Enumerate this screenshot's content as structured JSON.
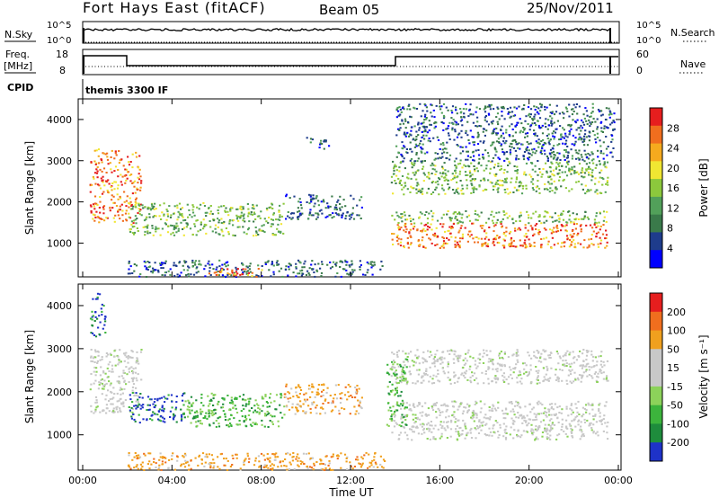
{
  "header": {
    "station": "Fort Hays East (fitACF)",
    "beam": "Beam 05",
    "date": "25/Nov/2011"
  },
  "status_panels": {
    "nsky_label": "N.Sky",
    "nsky_ticks": [
      "10^5",
      "10^0"
    ],
    "nsearch_label": "N.Search",
    "nsearch_ticks": [
      "10^5",
      "10^0"
    ],
    "freq_label": "Freq.",
    "freq_unit": "[MHz]",
    "freq_ticks": [
      "18",
      "8"
    ],
    "nave_label": "Nave",
    "nave_ticks": [
      "60",
      "0"
    ],
    "cpid_label": "CPID",
    "cpid_value": "themis 3300 IF"
  },
  "chart_data": [
    {
      "type": "heatmap",
      "name": "power",
      "ylabel": "Slant Range [km]",
      "ylim": [
        180,
        4500
      ],
      "y_ticks": [
        "4000",
        "3000",
        "2000",
        "1000"
      ],
      "xlim": [
        "00:00",
        "24:00"
      ],
      "colorbar_label": "Power [dB]",
      "colorbar_ticks": [
        "28",
        "24",
        "20",
        "16",
        "12",
        "8",
        "4"
      ],
      "colorbar_colors": [
        "#0000ff",
        "#1e3c8c",
        "#3a7a4a",
        "#52a05a",
        "#8cc83c",
        "#f0e632",
        "#f5aa1e",
        "#f06e1e",
        "#e61e1e"
      ],
      "echo_regions": [
        {
          "t0": 0.3,
          "t1": 2.6,
          "r0": 1500,
          "r1": 3300,
          "level": "high"
        },
        {
          "t0": 2.0,
          "t1": 9.0,
          "r0": 1200,
          "r1": 2000,
          "level": "mid"
        },
        {
          "t0": 9.0,
          "t1": 12.5,
          "r0": 1600,
          "r1": 2200,
          "level": "low"
        },
        {
          "t0": 10.0,
          "t1": 11.0,
          "r0": 3300,
          "r1": 3600,
          "level": "low"
        },
        {
          "t0": 2.0,
          "t1": 13.5,
          "r0": 200,
          "r1": 600,
          "level": "low"
        },
        {
          "t0": 5.5,
          "t1": 8.0,
          "r0": 200,
          "r1": 420,
          "level": "high"
        },
        {
          "t0": 13.8,
          "t1": 23.5,
          "r0": 900,
          "r1": 1500,
          "level": "high"
        },
        {
          "t0": 13.8,
          "t1": 23.5,
          "r0": 1500,
          "r1": 1800,
          "level": "mid"
        },
        {
          "t0": 13.8,
          "t1": 23.5,
          "r0": 2200,
          "r1": 3000,
          "level": "mid"
        },
        {
          "t0": 14.0,
          "t1": 23.8,
          "r0": 3000,
          "r1": 4400,
          "level": "low"
        }
      ]
    },
    {
      "type": "heatmap",
      "name": "velocity",
      "ylabel": "Slant Range [km]",
      "ylim": [
        180,
        4500
      ],
      "y_ticks": [
        "4000",
        "3000",
        "2000",
        "1000"
      ],
      "xlim": [
        "00:00",
        "24:00"
      ],
      "x_ticks": [
        "00:00",
        "04:00",
        "08:00",
        "12:00",
        "16:00",
        "20:00",
        "00:00"
      ],
      "xlabel": "Time UT",
      "colorbar_label": "Velocity [m s⁻¹]",
      "colorbar_ticks": [
        "200",
        "100",
        "50",
        "15",
        "-15",
        "-50",
        "-100",
        "-200"
      ],
      "colorbar_colors": [
        "#1e32c8",
        "#1e8c3c",
        "#3cb43c",
        "#8cd25a",
        "#c8c8c8",
        "#c8c8c8",
        "#f0a01e",
        "#f06e1e",
        "#e61e1e"
      ],
      "echo_regions": [
        {
          "t0": 0.3,
          "t1": 2.6,
          "r0": 1500,
          "r1": 3000,
          "level": "grey"
        },
        {
          "t0": 0.3,
          "t1": 1.0,
          "r0": 3300,
          "r1": 4300,
          "level": "blue"
        },
        {
          "t0": 2.0,
          "t1": 4.5,
          "r0": 1300,
          "r1": 2000,
          "level": "blue"
        },
        {
          "t0": 4.5,
          "t1": 9.0,
          "r0": 1200,
          "r1": 2000,
          "level": "green"
        },
        {
          "t0": 9.0,
          "t1": 12.5,
          "r0": 1500,
          "r1": 2200,
          "level": "orange"
        },
        {
          "t0": 2.0,
          "t1": 13.5,
          "r0": 200,
          "r1": 600,
          "level": "orange"
        },
        {
          "t0": 13.8,
          "t1": 23.5,
          "r0": 900,
          "r1": 1800,
          "level": "grey"
        },
        {
          "t0": 13.8,
          "t1": 23.5,
          "r0": 2200,
          "r1": 3000,
          "level": "grey"
        },
        {
          "t0": 13.6,
          "t1": 14.5,
          "r0": 1200,
          "r1": 2800,
          "level": "green"
        }
      ]
    }
  ]
}
